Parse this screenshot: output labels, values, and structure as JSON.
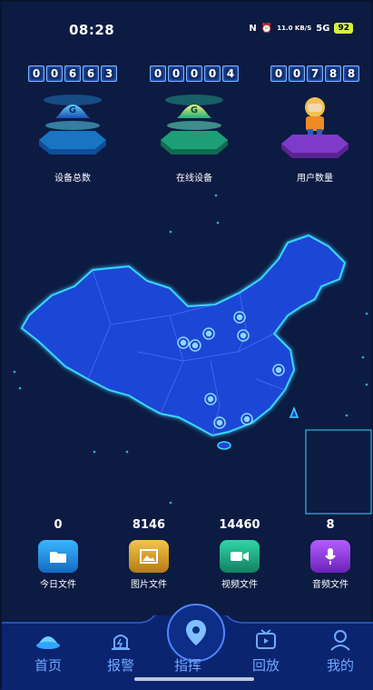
{
  "status": {
    "time": "08:28",
    "net_speed": "11.0 KB/S",
    "signal": "5G",
    "battery": "92"
  },
  "stats": [
    {
      "digits": [
        "0",
        "0",
        "6",
        "6",
        "3"
      ],
      "label": "设备总数",
      "icon": "helmet-icon",
      "color": "#2fa6ff"
    },
    {
      "digits": [
        "0",
        "0",
        "0",
        "0",
        "4"
      ],
      "label": "在线设备",
      "icon": "helmet-icon",
      "color": "#30e0a8"
    },
    {
      "digits": [
        "0",
        "0",
        "7",
        "8",
        "8"
      ],
      "label": "用户数量",
      "icon": "worker-figure-icon",
      "color": "#a64dff"
    }
  ],
  "kpis": [
    {
      "value": "0",
      "label": "今日文件",
      "icon": "folder-icon",
      "color": "#1e93d8"
    },
    {
      "value": "8146",
      "label": "图片文件",
      "icon": "image-icon",
      "color": "#d9a329"
    },
    {
      "value": "14460",
      "label": "视频文件",
      "icon": "video-camera-icon",
      "color": "#1fb38a"
    },
    {
      "value": "8",
      "label": "音频文件",
      "icon": "microphone-icon",
      "color": "#8a3fd6"
    }
  ],
  "tabs": [
    {
      "label": "首页",
      "icon": "helmet-home-icon",
      "active": true
    },
    {
      "label": "报警",
      "icon": "alarm-light-icon",
      "active": false
    },
    {
      "label": "指挥",
      "icon": "map-pin-icon",
      "active": false
    },
    {
      "label": "回放",
      "icon": "tv-play-icon",
      "active": false
    },
    {
      "label": "我的",
      "icon": "user-icon",
      "active": false
    }
  ],
  "map": {
    "region": "China",
    "accent": "#1f47d6",
    "glow": "#39d6ff"
  }
}
